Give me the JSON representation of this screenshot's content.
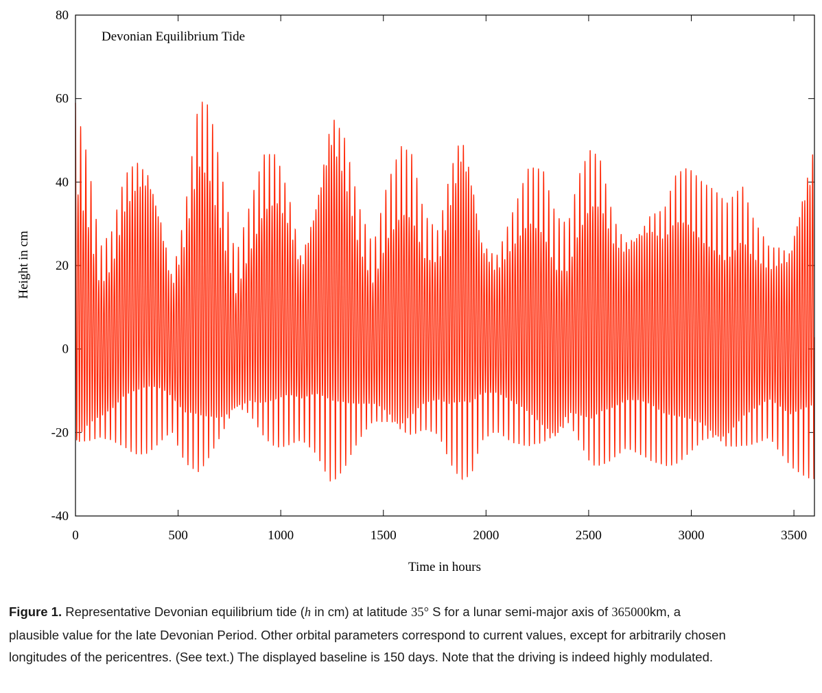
{
  "chart_data": {
    "type": "line",
    "title": "Devonian Equilibrium Tide",
    "xlabel": "Time in hours",
    "ylabel": "Height in cm",
    "xlim": [
      0,
      3600
    ],
    "ylim": [
      -40,
      80
    ],
    "xticks": [
      0,
      500,
      1000,
      1500,
      2000,
      2500,
      3000,
      3500
    ],
    "yticks": [
      -40,
      -20,
      0,
      20,
      40,
      60,
      80
    ],
    "xtick_labels": [
      "0",
      "500",
      "1000",
      "1500",
      "2000",
      "2500",
      "3000",
      "3500"
    ],
    "ytick_labels": [
      "-40",
      "-20",
      "0",
      "20",
      "40",
      "60",
      "80"
    ],
    "grid": false,
    "line_color": "#ff2200",
    "series": [
      {
        "description_points": "envelope of semidiurnal oscillation, [time_hours, max_cm, min_cm]",
        "envelope": [
          [
            0,
            59,
            -32
          ],
          [
            60,
            46,
            -28
          ],
          [
            120,
            25,
            -24
          ],
          [
            180,
            30,
            -24
          ],
          [
            240,
            45,
            -25
          ],
          [
            300,
            50,
            -26
          ],
          [
            360,
            48,
            -25
          ],
          [
            420,
            35,
            -22
          ],
          [
            470,
            20,
            -20
          ],
          [
            530,
            35,
            -28
          ],
          [
            600,
            62,
            -33
          ],
          [
            650,
            60,
            -31
          ],
          [
            720,
            40,
            -25
          ],
          [
            780,
            22,
            -18
          ],
          [
            850,
            35,
            -20
          ],
          [
            920,
            48,
            -25
          ],
          [
            980,
            49,
            -26
          ],
          [
            1040,
            40,
            -24
          ],
          [
            1100,
            25,
            -22
          ],
          [
            1170,
            40,
            -25
          ],
          [
            1250,
            63,
            -33
          ],
          [
            1310,
            55,
            -30
          ],
          [
            1380,
            36,
            -24
          ],
          [
            1450,
            25,
            -20
          ],
          [
            1520,
            40,
            -23
          ],
          [
            1590,
            49,
            -27
          ],
          [
            1640,
            47,
            -26
          ],
          [
            1700,
            33,
            -22
          ],
          [
            1770,
            30,
            -22
          ],
          [
            1820,
            45,
            -28
          ],
          [
            1880,
            58,
            -32
          ],
          [
            1930,
            48,
            -30
          ],
          [
            1980,
            30,
            -22
          ],
          [
            2050,
            25,
            -20
          ],
          [
            2130,
            35,
            -24
          ],
          [
            2210,
            45,
            -27
          ],
          [
            2280,
            43,
            -28
          ],
          [
            2340,
            32,
            -27
          ],
          [
            2400,
            30,
            -22
          ],
          [
            2450,
            42,
            -26
          ],
          [
            2510,
            50,
            -31
          ],
          [
            2560,
            48,
            -30
          ],
          [
            2620,
            35,
            -27
          ],
          [
            2680,
            30,
            -24
          ],
          [
            2740,
            33,
            -25
          ],
          [
            2800,
            37,
            -27
          ],
          [
            2870,
            37,
            -29
          ],
          [
            2920,
            44,
            -30
          ],
          [
            2980,
            45,
            -29
          ],
          [
            3060,
            40,
            -27
          ],
          [
            3120,
            38,
            -28
          ],
          [
            3170,
            35,
            -29
          ],
          [
            3250,
            40,
            -27
          ],
          [
            3300,
            33,
            -25
          ],
          [
            3380,
            27,
            -22
          ],
          [
            3430,
            28,
            -25
          ],
          [
            3480,
            28,
            -28
          ],
          [
            3530,
            40,
            -30
          ],
          [
            3600,
            55,
            -32
          ]
        ]
      }
    ]
  },
  "caption": {
    "label": "Figure 1.",
    "p1": " Representative Devonian equilibrium tide (",
    "var": "h",
    "p2": " in cm) at latitude ",
    "lat": "35°",
    "p3": " S for a lunar semi-major axis of ",
    "axis": "365000",
    "p4": "km, a plausible value for the late Devonian Period. Other orbital parameters correspond to current values, except for arbitrarily chosen longitudes of the pericentres. (See text.) The displayed baseline is 150 days. Note that the driving is indeed highly modulated."
  }
}
